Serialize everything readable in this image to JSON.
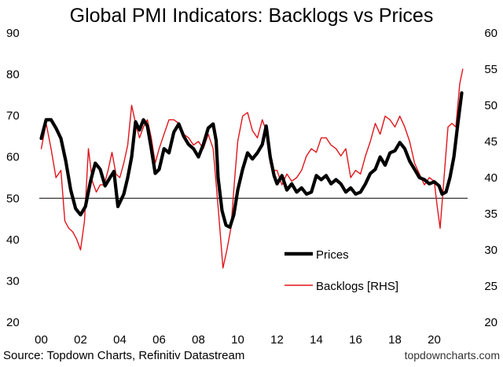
{
  "chart_data": {
    "type": "line",
    "title": "Global PMI Indicators: Backlogs vs Prices",
    "x_tick_labels": [
      "00",
      "02",
      "04",
      "06",
      "08",
      "10",
      "12",
      "14",
      "16",
      "18",
      "20"
    ],
    "x_tick_years": [
      2000,
      2002,
      2004,
      2006,
      2008,
      2010,
      2012,
      2014,
      2016,
      2018,
      2020
    ],
    "xlim": [
      1999.9,
      2021.7
    ],
    "left_axis": {
      "ylim": [
        20,
        90
      ],
      "ticks": [
        "20",
        "30",
        "40",
        "50",
        "60",
        "70",
        "80",
        "90"
      ]
    },
    "right_axis": {
      "ylim": [
        20,
        60
      ],
      "ticks": [
        "20",
        "25",
        "30",
        "35",
        "40",
        "45",
        "50",
        "55",
        "60"
      ]
    },
    "reference_line": {
      "axis": "left",
      "value": 50
    },
    "series": [
      {
        "name": "Prices",
        "axis": "left",
        "color": "#000000",
        "style": "thick",
        "points": [
          [
            2000.0,
            64.5
          ],
          [
            2000.25,
            69
          ],
          [
            2000.5,
            69
          ],
          [
            2000.75,
            67
          ],
          [
            2001.0,
            64.5
          ],
          [
            2001.25,
            59
          ],
          [
            2001.5,
            52
          ],
          [
            2001.75,
            47.5
          ],
          [
            2002.0,
            46
          ],
          [
            2002.25,
            48
          ],
          [
            2002.5,
            54
          ],
          [
            2002.75,
            58.5
          ],
          [
            2003.0,
            57
          ],
          [
            2003.25,
            53
          ],
          [
            2003.5,
            55
          ],
          [
            2003.7,
            56.5
          ],
          [
            2003.9,
            48
          ],
          [
            2004.2,
            51
          ],
          [
            2004.4,
            55
          ],
          [
            2004.6,
            60
          ],
          [
            2004.8,
            68.5
          ],
          [
            2005.0,
            66.5
          ],
          [
            2005.2,
            69
          ],
          [
            2005.4,
            67.5
          ],
          [
            2005.6,
            62
          ],
          [
            2005.8,
            56
          ],
          [
            2006.0,
            57
          ],
          [
            2006.25,
            62
          ],
          [
            2006.5,
            61
          ],
          [
            2006.75,
            66
          ],
          [
            2007.0,
            68
          ],
          [
            2007.25,
            65
          ],
          [
            2007.5,
            63
          ],
          [
            2007.75,
            62
          ],
          [
            2008.0,
            60
          ],
          [
            2008.25,
            63
          ],
          [
            2008.5,
            67
          ],
          [
            2008.75,
            68
          ],
          [
            2008.9,
            64
          ],
          [
            2009.0,
            55
          ],
          [
            2009.2,
            47
          ],
          [
            2009.4,
            43.5
          ],
          [
            2009.6,
            43
          ],
          [
            2009.8,
            46
          ],
          [
            2010.0,
            52
          ],
          [
            2010.25,
            57
          ],
          [
            2010.5,
            61
          ],
          [
            2010.75,
            59.5
          ],
          [
            2011.0,
            61
          ],
          [
            2011.25,
            63
          ],
          [
            2011.45,
            67.5
          ],
          [
            2011.65,
            60
          ],
          [
            2011.85,
            55.5
          ],
          [
            2012.0,
            53.5
          ],
          [
            2012.25,
            55.5
          ],
          [
            2012.5,
            52
          ],
          [
            2012.75,
            53.5
          ],
          [
            2013.0,
            51.5
          ],
          [
            2013.25,
            52.5
          ],
          [
            2013.5,
            51
          ],
          [
            2013.75,
            51.5
          ],
          [
            2014.0,
            55.5
          ],
          [
            2014.25,
            54.5
          ],
          [
            2014.5,
            55.5
          ],
          [
            2014.75,
            53.5
          ],
          [
            2015.0,
            54.5
          ],
          [
            2015.25,
            53.5
          ],
          [
            2015.5,
            51.5
          ],
          [
            2015.75,
            52.5
          ],
          [
            2016.0,
            51
          ],
          [
            2016.25,
            51.5
          ],
          [
            2016.5,
            53.5
          ],
          [
            2016.75,
            56
          ],
          [
            2017.0,
            57
          ],
          [
            2017.25,
            60
          ],
          [
            2017.5,
            58
          ],
          [
            2017.75,
            61
          ],
          [
            2018.0,
            61.5
          ],
          [
            2018.25,
            63.5
          ],
          [
            2018.5,
            62
          ],
          [
            2018.75,
            59
          ],
          [
            2019.0,
            57
          ],
          [
            2019.25,
            55
          ],
          [
            2019.5,
            54.5
          ],
          [
            2019.75,
            53.5
          ],
          [
            2020.0,
            54
          ],
          [
            2020.25,
            53
          ],
          [
            2020.4,
            51
          ],
          [
            2020.6,
            51.5
          ],
          [
            2020.8,
            55
          ],
          [
            2021.0,
            60
          ],
          [
            2021.2,
            68
          ],
          [
            2021.4,
            75.5
          ]
        ]
      },
      {
        "name": "Backlogs [RHS]",
        "axis": "right",
        "color": "#e0151b",
        "style": "thin",
        "points": [
          [
            2000.0,
            44
          ],
          [
            2000.25,
            47.5
          ],
          [
            2000.5,
            44
          ],
          [
            2000.75,
            40
          ],
          [
            2001.0,
            41
          ],
          [
            2001.2,
            34
          ],
          [
            2001.4,
            33
          ],
          [
            2001.6,
            32.5
          ],
          [
            2001.8,
            31.5
          ],
          [
            2002.0,
            30
          ],
          [
            2002.2,
            34
          ],
          [
            2002.4,
            44
          ],
          [
            2002.6,
            39.5
          ],
          [
            2002.8,
            38
          ],
          [
            2003.0,
            39
          ],
          [
            2003.2,
            39
          ],
          [
            2003.4,
            41
          ],
          [
            2003.6,
            43.5
          ],
          [
            2003.8,
            40.5
          ],
          [
            2004.0,
            40
          ],
          [
            2004.2,
            42
          ],
          [
            2004.4,
            44.5
          ],
          [
            2004.6,
            50
          ],
          [
            2004.8,
            47.5
          ],
          [
            2005.0,
            45.5
          ],
          [
            2005.2,
            47
          ],
          [
            2005.4,
            48
          ],
          [
            2005.6,
            45.5
          ],
          [
            2005.8,
            42
          ],
          [
            2006.0,
            44
          ],
          [
            2006.25,
            46
          ],
          [
            2006.5,
            48
          ],
          [
            2006.75,
            48
          ],
          [
            2007.0,
            47.5
          ],
          [
            2007.25,
            46
          ],
          [
            2007.5,
            45.5
          ],
          [
            2007.75,
            44.5
          ],
          [
            2008.0,
            45
          ],
          [
            2008.25,
            44
          ],
          [
            2008.5,
            46
          ],
          [
            2008.75,
            44
          ],
          [
            2009.0,
            36
          ],
          [
            2009.25,
            27.5
          ],
          [
            2009.45,
            30
          ],
          [
            2009.65,
            33
          ],
          [
            2009.85,
            40
          ],
          [
            2010.0,
            45
          ],
          [
            2010.25,
            48.5
          ],
          [
            2010.5,
            49
          ],
          [
            2010.75,
            46.5
          ],
          [
            2011.0,
            45.5
          ],
          [
            2011.25,
            48
          ],
          [
            2011.45,
            46.5
          ],
          [
            2011.65,
            42
          ],
          [
            2011.85,
            41
          ],
          [
            2012.0,
            41
          ],
          [
            2012.25,
            39
          ],
          [
            2012.5,
            40.5
          ],
          [
            2012.75,
            39.5
          ],
          [
            2013.0,
            40
          ],
          [
            2013.25,
            41
          ],
          [
            2013.5,
            43
          ],
          [
            2013.75,
            44
          ],
          [
            2014.0,
            43.5
          ],
          [
            2014.25,
            45.5
          ],
          [
            2014.5,
            45.5
          ],
          [
            2014.75,
            44.5
          ],
          [
            2015.0,
            44
          ],
          [
            2015.25,
            43
          ],
          [
            2015.5,
            44
          ],
          [
            2015.75,
            40
          ],
          [
            2016.0,
            41
          ],
          [
            2016.25,
            40.5
          ],
          [
            2016.5,
            43
          ],
          [
            2016.75,
            45
          ],
          [
            2017.0,
            47.5
          ],
          [
            2017.25,
            46
          ],
          [
            2017.5,
            48.5
          ],
          [
            2017.75,
            48
          ],
          [
            2018.0,
            47
          ],
          [
            2018.25,
            48.5
          ],
          [
            2018.5,
            47
          ],
          [
            2018.75,
            45
          ],
          [
            2019.0,
            42
          ],
          [
            2019.25,
            40.5
          ],
          [
            2019.5,
            39
          ],
          [
            2019.75,
            40
          ],
          [
            2020.0,
            39.5
          ],
          [
            2020.15,
            36
          ],
          [
            2020.3,
            33
          ],
          [
            2020.5,
            40
          ],
          [
            2020.7,
            47
          ],
          [
            2020.9,
            47.5
          ],
          [
            2021.1,
            47
          ],
          [
            2021.3,
            53
          ],
          [
            2021.45,
            55
          ]
        ]
      }
    ],
    "legend": [
      {
        "label": "Prices",
        "style": "thick"
      },
      {
        "label": "Backlogs [RHS]",
        "style": "thin"
      }
    ],
    "legend_placement": "bottom-right",
    "source": "Source: Topdown Charts, Refinitiv Datastream",
    "credit": "topdowncharts.com"
  }
}
